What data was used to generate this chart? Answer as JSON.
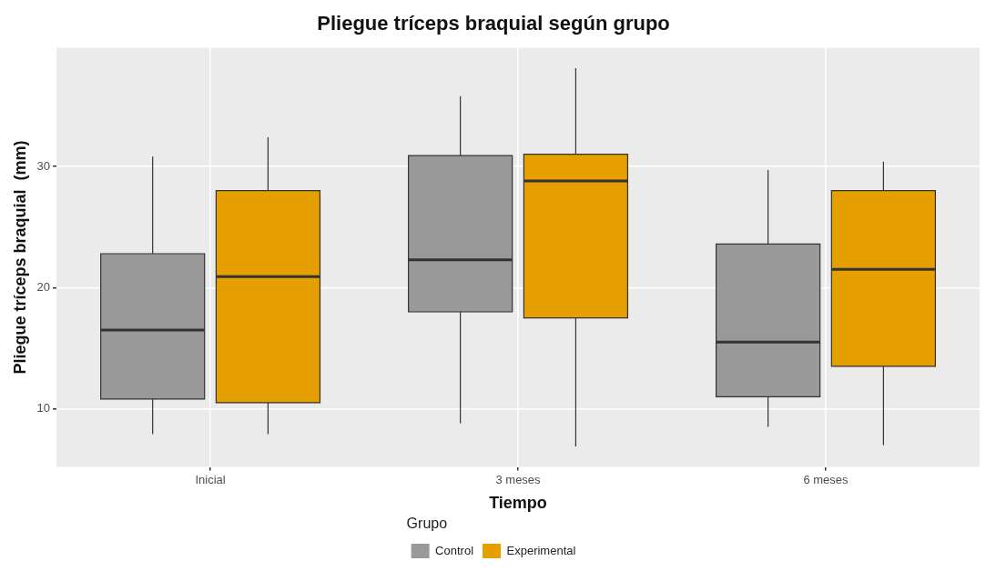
{
  "chart_data": {
    "type": "box",
    "title": "Pliegue tríceps braquial según grupo",
    "xlabel": "Tiempo",
    "ylabel": "Pliegue tríceps braquial  (mm)",
    "legend_title": "Grupo",
    "legend": "bottom",
    "grid": true,
    "categories": [
      "Inicial",
      "3 meses",
      "6 meses"
    ],
    "ylim": [
      5.2,
      39.8
    ],
    "yticks": [
      10,
      20,
      30
    ],
    "series": [
      {
        "name": "Control",
        "color": "#999999",
        "boxes": [
          {
            "low": 7.9,
            "q1": 10.8,
            "median": 16.5,
            "q3": 22.8,
            "high": 30.8
          },
          {
            "low": 8.8,
            "q1": 18.0,
            "median": 22.3,
            "q3": 30.9,
            "high": 35.8
          },
          {
            "low": 8.5,
            "q1": 11.0,
            "median": 15.5,
            "q3": 23.6,
            "high": 29.7
          }
        ]
      },
      {
        "name": "Experimental",
        "color": "#e69f00",
        "boxes": [
          {
            "low": 7.9,
            "q1": 10.5,
            "median": 20.9,
            "q3": 28.0,
            "high": 32.4
          },
          {
            "low": 6.9,
            "q1": 17.5,
            "median": 28.8,
            "q3": 31.0,
            "high": 38.1
          },
          {
            "low": 7.0,
            "q1": 13.5,
            "median": 21.5,
            "q3": 28.0,
            "high": 30.4
          }
        ]
      }
    ]
  }
}
